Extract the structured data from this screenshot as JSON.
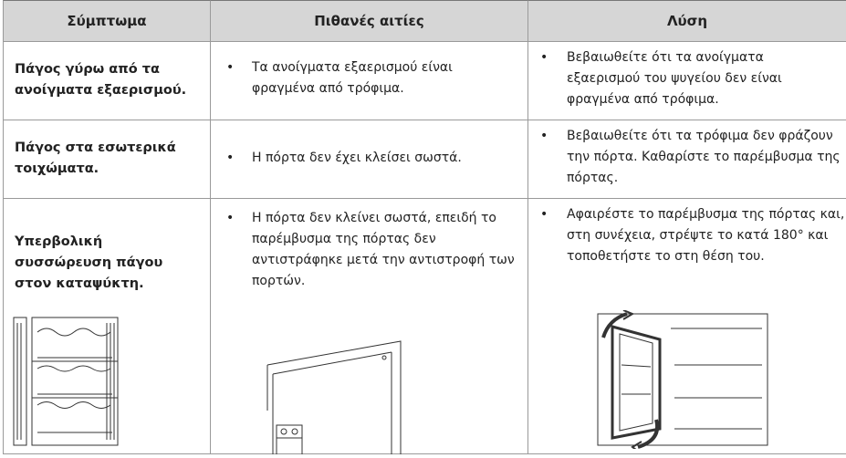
{
  "header": [
    "Σύμπτωμα",
    "Πιθανές αιτίες",
    "Λύση"
  ],
  "rows": [
    [
      "Πάγος γύρω από τα ανοίγματα εξαερισμού.",
      "Τα ανοίγματα εξαερισμού είναι φραγμένα από τρόφιμα.",
      "Βεβαιωθείτε ότι τα ανοίγματα εξαερισμού του ψυγείου δεν είναι φραγμένα από τρόφιμα."
    ],
    [
      "Πάγος στα εσωτερικά τοιχώματα.",
      "Η πόρτα δεν έχει κλείσει σωστά.",
      "Βεβαιωθείτε ότι τα τρόφιμα δεν φράζουν την πόρτα. Καθαρίστε το παρέμβυσμα της πόρτας."
    ],
    [
      "Υπερβολική συσσώρευση πάγου στον καταψύκτη.",
      "Η πόρτα δεν κλείνει σωστά, επειδή το παρέμβυσμα της πόρτας δεν αντιστράφηκε μετά την αντιστροφή των πορτών.",
      "Αφαιρέστε το παρέμβυσμα της πόρτας και, στη συνέχεια, στρέψτε το κατά 180° και τοποθετήστε το στη θέση του."
    ]
  ]
}
